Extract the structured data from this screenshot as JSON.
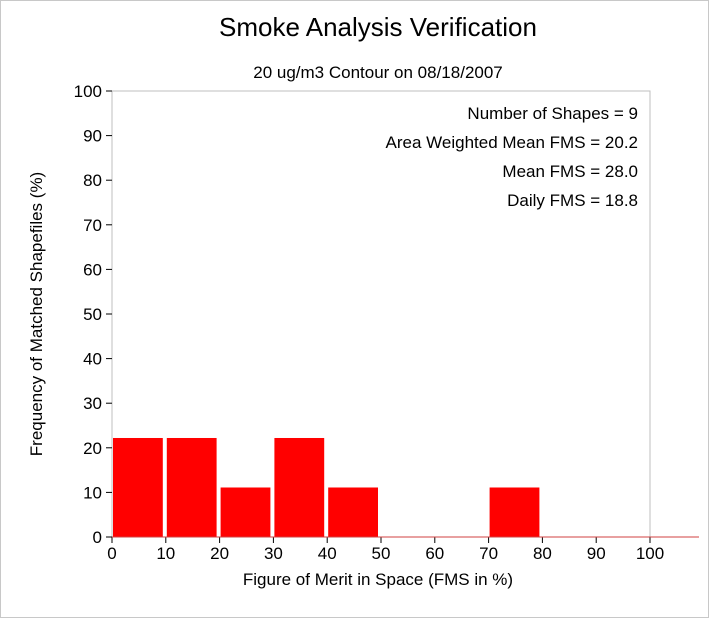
{
  "chart_data": {
    "type": "bar",
    "title": "Smoke Analysis Verification",
    "subtitle": "20 ug/m3 Contour on 08/18/2007",
    "xlabel": "Figure of Merit in Space (FMS in %)",
    "ylabel": "Frequency of Matched Shapefiles (%)",
    "xlim": [
      0,
      100
    ],
    "ylim": [
      0,
      100
    ],
    "xticks": [
      "0",
      "10",
      "20",
      "30",
      "40",
      "50",
      "60",
      "70",
      "80",
      "90",
      "100"
    ],
    "yticks": [
      "0",
      "10",
      "20",
      "30",
      "40",
      "50",
      "60",
      "70",
      "80",
      "90",
      "100"
    ],
    "bin_width": 10,
    "bins": [
      {
        "start": 0,
        "value": 22.2
      },
      {
        "start": 10,
        "value": 22.2
      },
      {
        "start": 20,
        "value": 11.1
      },
      {
        "start": 30,
        "value": 22.2
      },
      {
        "start": 40,
        "value": 11.1
      },
      {
        "start": 50,
        "value": 0
      },
      {
        "start": 60,
        "value": 0
      },
      {
        "start": 70,
        "value": 11.1
      },
      {
        "start": 80,
        "value": 0
      },
      {
        "start": 90,
        "value": 0
      }
    ],
    "bar_color": "#ff0000",
    "grid": false,
    "annotations": [
      "Number of Shapes = 9",
      "Area Weighted Mean FMS = 20.2",
      "Mean FMS = 28.0",
      "Daily FMS = 18.8"
    ]
  }
}
